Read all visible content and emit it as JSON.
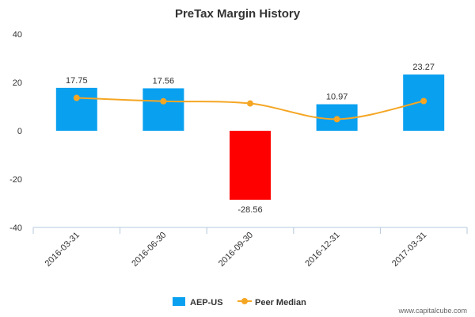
{
  "chart_data": {
    "type": "bar",
    "title": "PreTax Margin History",
    "categories": [
      "2016-03-31",
      "2016-06-30",
      "2016-09-30",
      "2016-12-31",
      "2017-03-31"
    ],
    "series": [
      {
        "name": "AEP-US",
        "kind": "bar",
        "values": [
          17.75,
          17.56,
          -28.56,
          10.97,
          23.27
        ],
        "data_labels": [
          "17.75",
          "17.56",
          "-28.56",
          "10.97",
          "23.27"
        ]
      },
      {
        "name": "Peer Median",
        "kind": "line",
        "values": [
          13.6,
          12.2,
          11.3,
          4.8,
          12.3
        ]
      }
    ],
    "yticks": [
      "40",
      "20",
      "0",
      "-20",
      "-40"
    ],
    "ylim": [
      -40,
      40
    ],
    "grid": false,
    "legend": "bottom-center"
  },
  "colors": {
    "bar": "#0aa0f0",
    "bar_negative": "#ff0000",
    "line": "#f5a623",
    "axis": "#b4c8dc"
  },
  "credit": "www.capitalcube.com"
}
